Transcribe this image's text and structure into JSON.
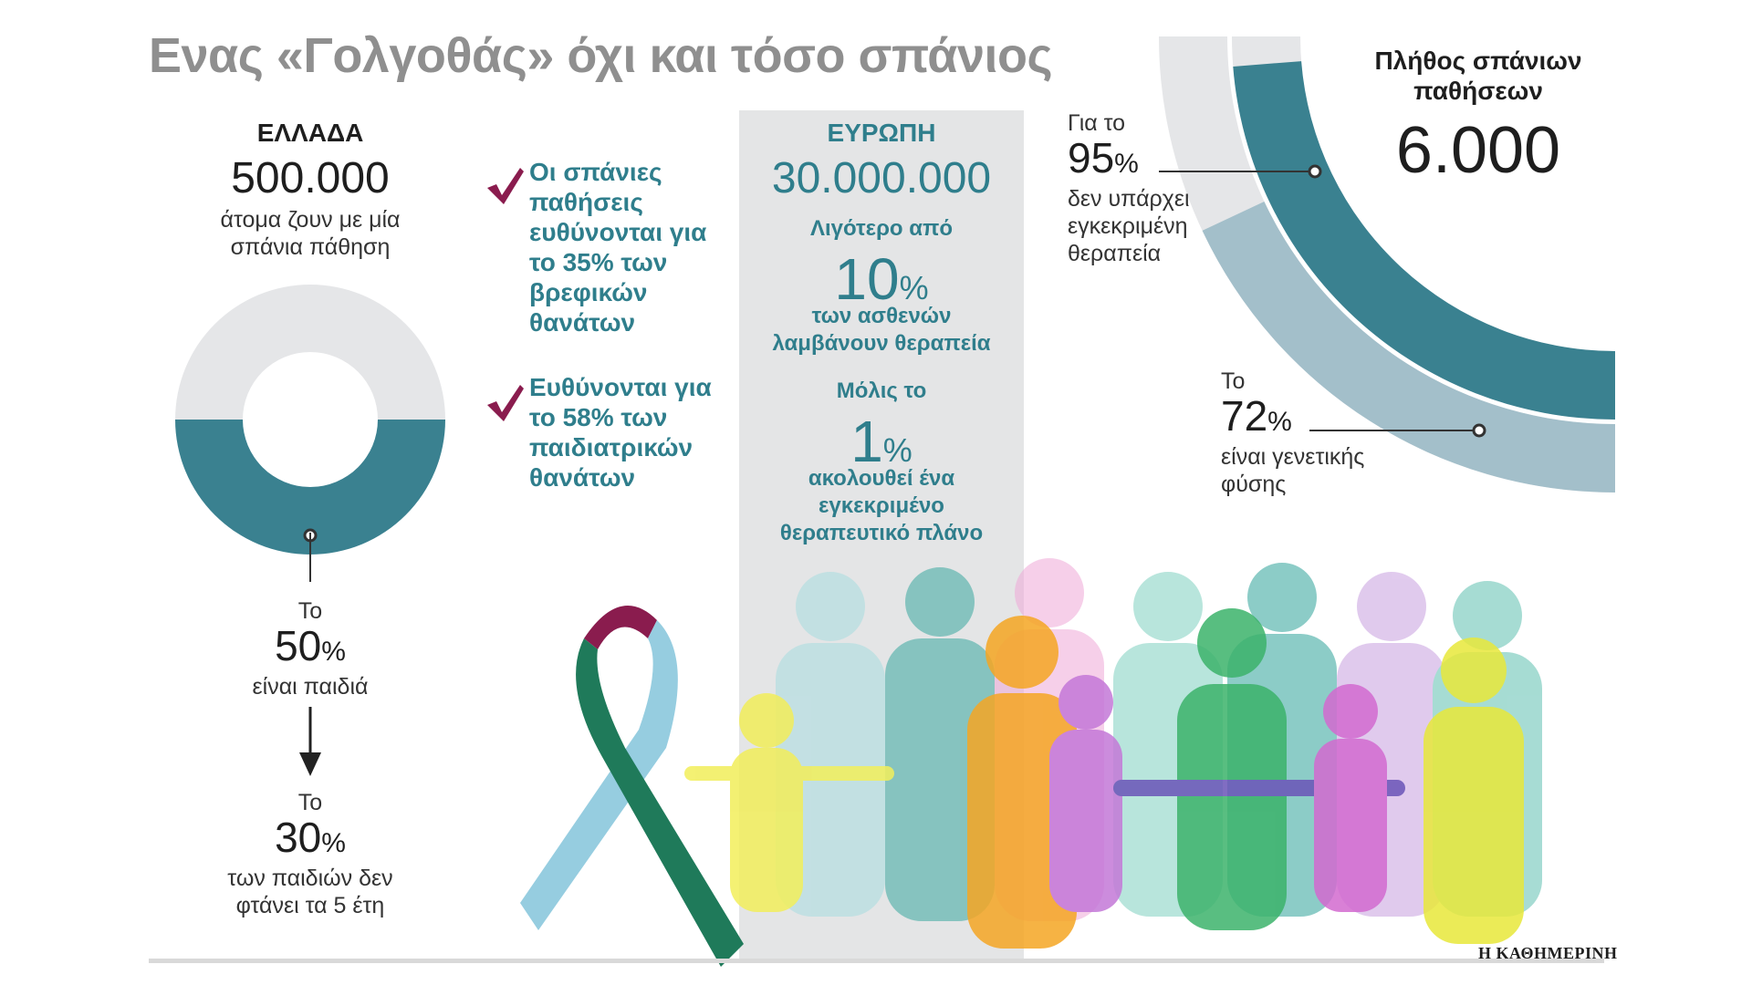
{
  "title": "Ενας «Γολγοθάς» όχι και τόσο σπάνιος",
  "greece": {
    "label": "ΕΛΛΑΔΑ",
    "number": "500.000",
    "desc": "άτομα ζουν με μία σπάνια πάθηση",
    "children_prefix": "Το",
    "children_value": "50",
    "children_suffix": "είναι παιδιά",
    "under5_prefix": "Το",
    "under5_value": "30",
    "under5_suffix": "των παιδιών δεν φτάνει τα 5 έτη",
    "pct_symbol": "%"
  },
  "bullets": [
    {
      "text": "Οι σπάνιες παθήσεις ευθύνονται για το 35% των βρεφικών θανάτων"
    },
    {
      "text": "Ευθύνονται για το 58% των παιδιατρικών θανάτων"
    }
  ],
  "europe": {
    "label": "ΕΥΡΩΠΗ",
    "number": "30.000.000",
    "less_than": "Λιγότερο από",
    "treated_value": "10",
    "treated_desc": "των ασθενών λαμβάνουν θεραπεία",
    "only": "Μόλις το",
    "plan_value": "1",
    "plan_desc": "ακολουθεί ένα εγκεκριμένο θεραπευτικό πλάνο",
    "pct_symbol": "%"
  },
  "rare": {
    "title": "Πλήθος σπάνιων παθήσεων",
    "number": "6.000",
    "no_therapy_prefix": "Για το",
    "no_therapy_value": "95",
    "no_therapy_desc": "δεν υπάρχει εγκεκριμένη θεραπεία",
    "genetic_prefix": "Το",
    "genetic_value": "72",
    "genetic_desc": "είναι γενετικής φύσης",
    "pct_symbol": "%"
  },
  "credit": "Η ΚΑΘΗΜΕΡΙΝΗ",
  "colors": {
    "teal": "#3a8190",
    "light_teal": "#a3bfca",
    "light_gray": "#e5e6e8",
    "check": "#8a1c4e",
    "panel": "#e4e5e6"
  },
  "chart_data": [
    {
      "type": "pie",
      "subtype": "donut",
      "values": [
        50,
        50
      ],
      "highlight_value": 50,
      "labels": [
        "είναι παιδιά",
        ""
      ]
    },
    {
      "type": "pie",
      "subtype": "concentric-arcs",
      "values": [
        95,
        72
      ],
      "labels": [
        "δεν υπάρχει εγκεκριμένη θεραπεία",
        "είναι γενετικής φύσης"
      ]
    }
  ]
}
